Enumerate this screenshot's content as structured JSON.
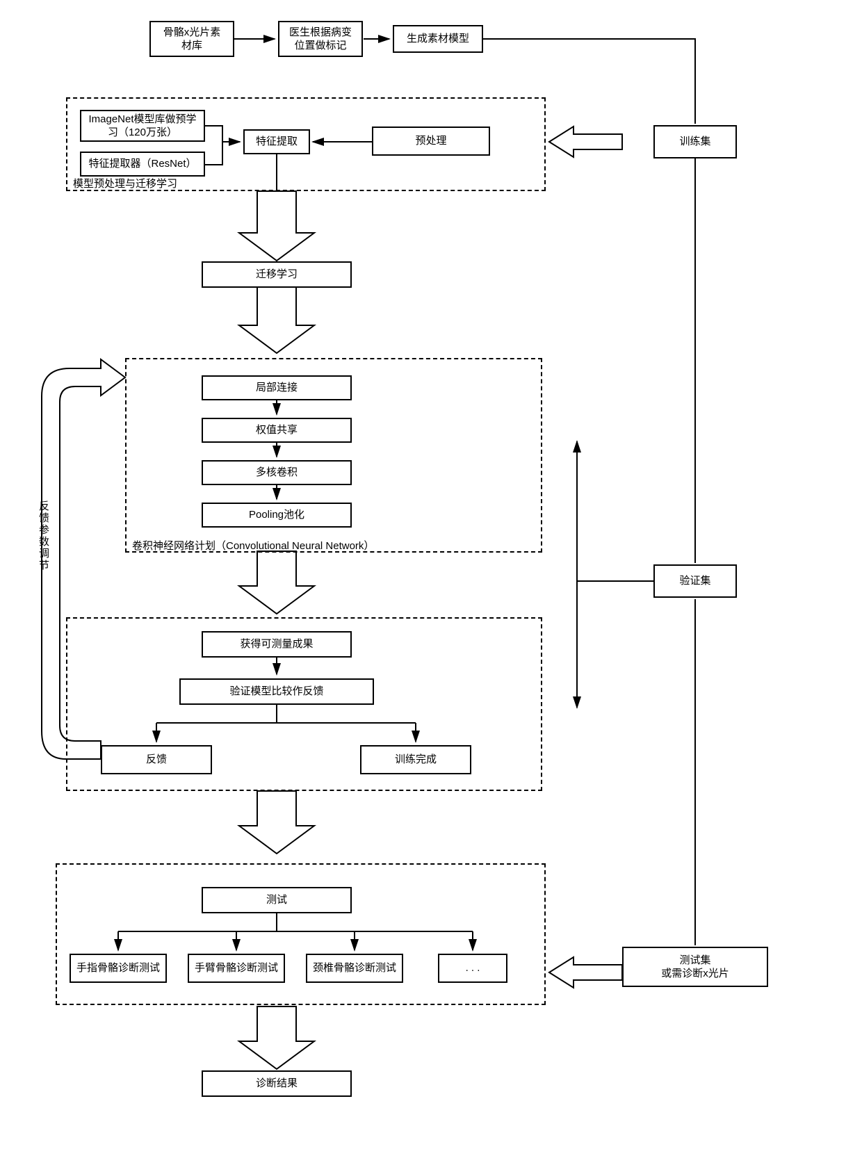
{
  "colors": {
    "stroke": "#000000",
    "background": "#ffffff"
  },
  "lineWidth": 2,
  "fontSize": 15,
  "top": {
    "n1": "骨骼x光片素\n材库",
    "n2": "医生根据病变\n位置做标记",
    "n3": "生成素材模型"
  },
  "right": {
    "train": "训练集",
    "valid": "验证集",
    "test": "测试集\n或需诊断x光片"
  },
  "group1": {
    "label": "模型预处理与迁移学习",
    "imagenet": "ImageNet模型库做预学\n习（120万张）",
    "resnet": "特征提取器（ResNet）",
    "feat": "特征提取",
    "preproc": "预处理"
  },
  "transfer": "迁移学习",
  "group2": {
    "label": "卷积神经网络计划（Convolutional Neural Network）",
    "n1": "局部连接",
    "n2": "权值共享",
    "n3": "多核卷积",
    "n4": "Pooling池化"
  },
  "feedbackLabel": "反馈参数调节",
  "group3": {
    "n1": "获得可测量成果",
    "n2": "验证模型比较作反馈",
    "left": "反馈",
    "right": "训练完成"
  },
  "group4": {
    "test": "测试",
    "t1": "手指骨骼诊断测试",
    "t2": "手臂骨骼诊断测试",
    "t3": "颈椎骨骼诊断测试",
    "t4": ". . ."
  },
  "result": "诊断结果"
}
